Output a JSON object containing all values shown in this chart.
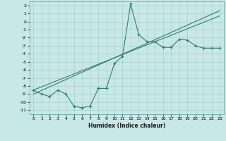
{
  "xlabel": "Humidex (Indice chaleur)",
  "x": [
    0,
    1,
    2,
    3,
    4,
    5,
    6,
    7,
    8,
    9,
    10,
    11,
    12,
    13,
    14,
    15,
    16,
    17,
    18,
    19,
    20,
    21,
    22,
    23
  ],
  "y_main": [
    -8.5,
    -9.0,
    -9.3,
    -8.5,
    -9.0,
    -10.5,
    -10.7,
    -10.5,
    -8.3,
    -8.3,
    -5.2,
    -4.3,
    2.2,
    -1.6,
    -2.5,
    -2.5,
    -3.2,
    -3.2,
    -2.2,
    -2.3,
    -3.0,
    -3.3,
    -3.3,
    -3.3
  ],
  "y_reg1": [
    -8.5,
    -8.1,
    -7.7,
    -7.3,
    -6.9,
    -6.5,
    -6.1,
    -5.7,
    -5.3,
    -4.9,
    -4.5,
    -4.1,
    -3.7,
    -3.3,
    -2.9,
    -2.5,
    -2.1,
    -1.7,
    -1.3,
    -0.9,
    -0.5,
    -0.1,
    0.3,
    0.7
  ],
  "y_reg2": [
    -9.0,
    -8.55,
    -8.1,
    -7.65,
    -7.2,
    -6.75,
    -6.3,
    -5.85,
    -5.4,
    -4.95,
    -4.5,
    -4.05,
    -3.6,
    -3.15,
    -2.7,
    -2.25,
    -1.8,
    -1.35,
    -0.9,
    -0.45,
    0.0,
    0.45,
    0.9,
    1.35
  ],
  "ylim": [
    -11.5,
    2.5
  ],
  "xlim": [
    -0.5,
    23.5
  ],
  "yticks": [
    2,
    1,
    0,
    -1,
    -2,
    -3,
    -4,
    -5,
    -6,
    -7,
    -8,
    -9,
    -10,
    -11
  ],
  "xticks": [
    0,
    1,
    2,
    3,
    4,
    5,
    6,
    7,
    8,
    9,
    10,
    11,
    12,
    13,
    14,
    15,
    16,
    17,
    18,
    19,
    20,
    21,
    22,
    23
  ],
  "line_color": "#2e7d72",
  "bg_color": "#c8e8e8",
  "grid_color": "#aacece",
  "fig_bg": "#c8e8e8"
}
